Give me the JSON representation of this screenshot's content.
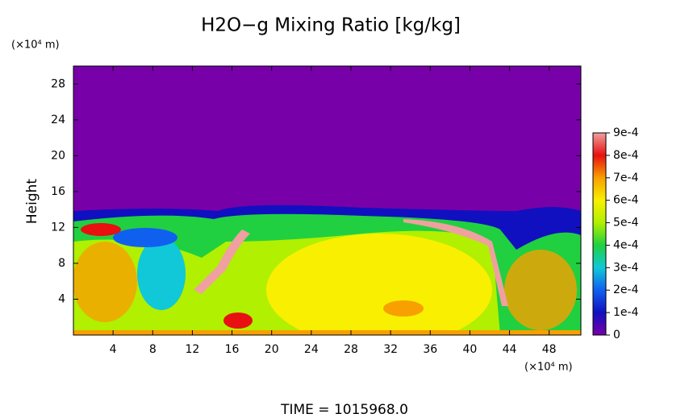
{
  "chart_data": {
    "type": "contour",
    "title": "H2O−g Mixing Ratio [kg/kg]",
    "y_label": "Height",
    "y_unit": "(×10⁴ m)",
    "x_unit": "(×10⁴ m)",
    "footer": "TIME  =  1015968.0",
    "xlim": [
      0,
      51.2
    ],
    "xticks": [
      4,
      8,
      12,
      16,
      20,
      24,
      28,
      32,
      36,
      40,
      44,
      48
    ],
    "ylim": [
      0,
      30
    ],
    "yticks": [
      4,
      8,
      12,
      16,
      20,
      24,
      28
    ],
    "colorbar_lim": [
      0,
      0.0009
    ],
    "colorbar_ticks": [
      0,
      {
        "value": 0.0001,
        "label": "1e-4"
      },
      {
        "value": 0.0002,
        "label": "2e-4"
      },
      {
        "value": 0.0003,
        "label": "3e-4"
      },
      {
        "value": 0.0004,
        "label": "4e-4"
      },
      {
        "value": 0.0005,
        "label": "5e-4"
      },
      {
        "value": 0.0006,
        "label": "6e-4"
      },
      {
        "value": 0.0007,
        "label": "7e-4"
      },
      {
        "value": 0.0008,
        "label": "8e-4"
      },
      {
        "value": 0.0009,
        "label": "9e-4"
      }
    ],
    "colormap": [
      "#7800a8",
      "#1010c0",
      "#1060f0",
      "#10c8d8",
      "#20d040",
      "#b0f000",
      "#f8f000",
      "#f8a000",
      "#e81010",
      "#f0a0a0"
    ]
  }
}
